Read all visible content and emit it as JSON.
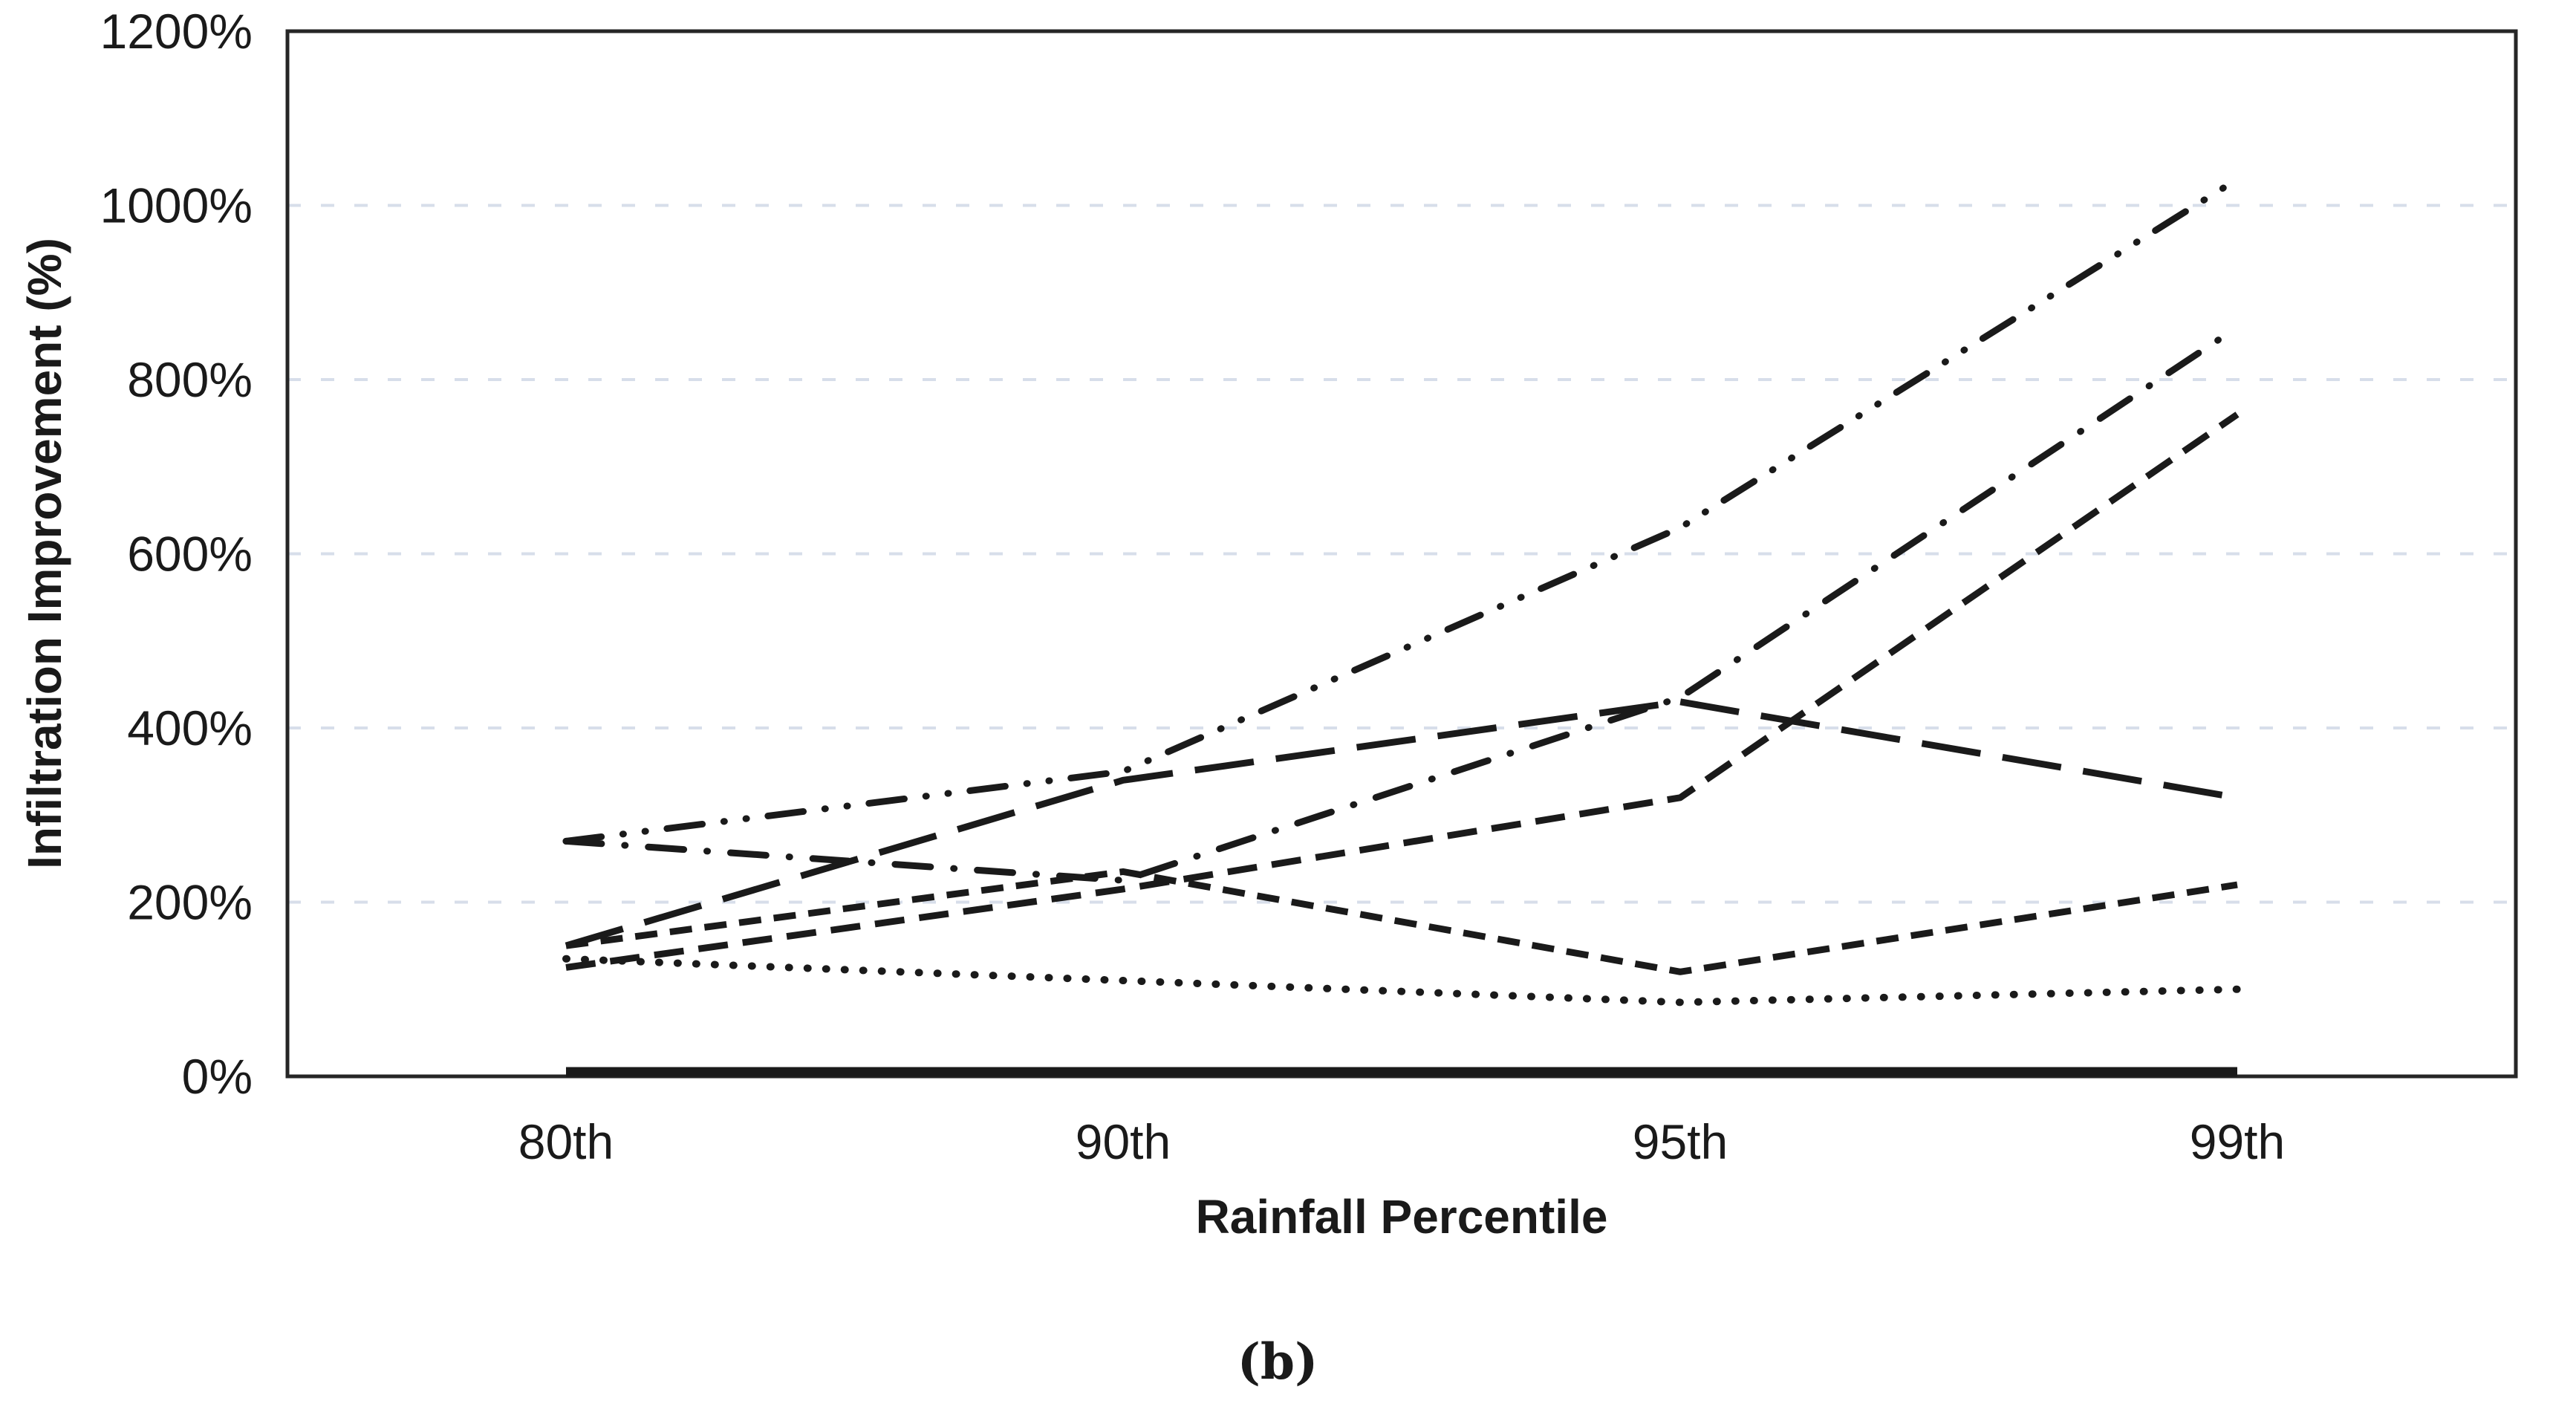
{
  "colors": {
    "line": "#1a1a1a",
    "gridline": "#d7deea",
    "frame": "#262626",
    "background": "#ffffff",
    "text": "#1a1a1a"
  },
  "chart_data": {
    "type": "line",
    "title": "",
    "xlabel": "Rainfall Percentile",
    "ylabel": "Infiltration Improvement (%)",
    "caption": "(b)",
    "categories": [
      "80th",
      "90th",
      "95th",
      "99th"
    ],
    "ylim": [
      0,
      1200
    ],
    "ytick_step": 200,
    "ytick_labels": [
      "0%",
      "200%",
      "400%",
      "600%",
      "800%",
      "1000%",
      "1200%"
    ],
    "grid": "horizontal-dashed",
    "legend": "none",
    "series": [
      {
        "name": "dash-dot-dot-line",
        "style": "dash-dot-dot",
        "values": [
          270,
          350,
          630,
          1030
        ]
      },
      {
        "name": "dash-dot-line",
        "style": "dash-dot",
        "values": [
          270,
          225,
          435,
          860
        ]
      },
      {
        "name": "long-dash-line",
        "style": "long-dash",
        "values": [
          150,
          340,
          430,
          320
        ]
      },
      {
        "name": "medium-dash-line",
        "style": "medium-dash",
        "values": [
          125,
          215,
          320,
          760
        ]
      },
      {
        "name": "short-dash-line",
        "style": "short-dash",
        "values": [
          150,
          235,
          120,
          220
        ]
      },
      {
        "name": "dotted-line",
        "style": "dotted",
        "values": [
          135,
          110,
          85,
          100
        ]
      },
      {
        "name": "solid-baseline",
        "style": "solid-thick",
        "values": [
          0,
          0,
          0,
          0
        ]
      }
    ]
  }
}
